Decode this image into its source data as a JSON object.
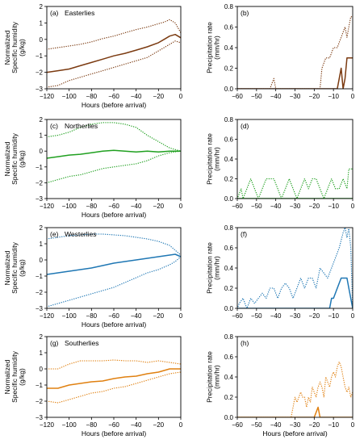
{
  "colors": {
    "easterlies": "#7b3a10",
    "northerlies": "#20a020",
    "westerlies": "#1f77b4",
    "southerlies": "#e08010",
    "axis": "#000000"
  },
  "chart_data": [
    {
      "id": "a",
      "type": "line",
      "panel_label": "(a)",
      "title": "Easterlies",
      "xlabel": "Hours (before arrival)",
      "ylabel": [
        "Normalized",
        "Specific humidity",
        "(g/kg)"
      ],
      "xlim": [
        -120,
        0
      ],
      "ylim": [
        -3,
        2
      ],
      "xticks": [
        -120,
        -100,
        -80,
        -60,
        -40,
        -20,
        0
      ],
      "xtick_labels": [
        "−120",
        "−100",
        "−80",
        "−60",
        "−40",
        "−20",
        "0"
      ],
      "yticks": [
        -3,
        -2,
        -1,
        0,
        1,
        2
      ],
      "ytick_labels": [
        "−3",
        "−2",
        "−1",
        "0",
        "1",
        "2"
      ],
      "color_key": "easterlies",
      "series": [
        {
          "style": "solid",
          "x": [
            -120,
            -110,
            -100,
            -90,
            -80,
            -70,
            -60,
            -50,
            -40,
            -30,
            -20,
            -15,
            -10,
            -5,
            0
          ],
          "y": [
            -2.0,
            -1.9,
            -1.8,
            -1.6,
            -1.4,
            -1.2,
            -1.0,
            -0.85,
            -0.65,
            -0.45,
            -0.2,
            0.0,
            0.2,
            0.3,
            0.1
          ]
        },
        {
          "style": "dotted",
          "x": [
            -120,
            -110,
            -100,
            -90,
            -80,
            -70,
            -60,
            -50,
            -40,
            -30,
            -20,
            -15,
            -10,
            -5,
            0
          ],
          "y": [
            -0.6,
            -0.5,
            -0.4,
            -0.3,
            -0.15,
            0.05,
            0.2,
            0.4,
            0.6,
            0.75,
            0.95,
            1.05,
            1.2,
            1.0,
            0.4
          ]
        },
        {
          "style": "dotted",
          "x": [
            -120,
            -110,
            -100,
            -90,
            -80,
            -70,
            -60,
            -50,
            -40,
            -30,
            -20,
            -15,
            -10,
            -5,
            0
          ],
          "y": [
            -2.9,
            -2.8,
            -2.5,
            -2.3,
            -2.1,
            -1.9,
            -1.7,
            -1.5,
            -1.3,
            -1.1,
            -0.7,
            -0.5,
            -0.3,
            -0.1,
            -0.2
          ]
        }
      ]
    },
    {
      "id": "b",
      "type": "line",
      "panel_label": "(b)",
      "title": "",
      "xlabel": "",
      "ylabel": [
        "Precipitation rate",
        "(mm/hr)"
      ],
      "xlim": [
        -60,
        0
      ],
      "ylim": [
        0,
        0.8
      ],
      "xticks": [
        -60,
        -50,
        -40,
        -30,
        -20,
        -10,
        0
      ],
      "xtick_labels": [
        "−60",
        "−50",
        "−40",
        "−30",
        "−20",
        "−10",
        "0"
      ],
      "yticks": [
        0,
        0.2,
        0.4,
        0.6,
        0.8
      ],
      "ytick_labels": [
        "0.0",
        "0.2",
        "0.4",
        "0.6",
        "0.8"
      ],
      "color_key": "easterlies",
      "series": [
        {
          "style": "solid",
          "x": [
            -60,
            -8,
            -7,
            -6,
            -5,
            -4,
            -3,
            -2,
            -1,
            0
          ],
          "y": [
            0,
            0,
            0.1,
            0.2,
            0,
            0.1,
            0.3,
            0.3,
            0.3,
            0.3
          ]
        },
        {
          "style": "dotted",
          "x": [
            -60,
            -43,
            -42,
            -41,
            -40,
            -17,
            -16,
            -14,
            -12,
            -10,
            -8,
            -6,
            -4,
            -3,
            -2,
            -1,
            0
          ],
          "y": [
            0,
            0,
            0.05,
            0.1,
            0,
            0,
            0.2,
            0.3,
            0.3,
            0.4,
            0.4,
            0.5,
            0.6,
            0.5,
            0.6,
            0.7,
            0.7
          ]
        }
      ]
    },
    {
      "id": "c",
      "type": "line",
      "panel_label": "(c)",
      "title": "Northerlies",
      "xlabel": "Hours (before arrival)",
      "ylabel": [
        "Normalized",
        "Specific humidity",
        "(g/kg)"
      ],
      "xlim": [
        -120,
        0
      ],
      "ylim": [
        -3,
        2
      ],
      "xticks": [
        -120,
        -100,
        -80,
        -60,
        -40,
        -20,
        0
      ],
      "xtick_labels": [
        "−120",
        "−100",
        "−80",
        "−60",
        "−40",
        "−20",
        "0"
      ],
      "yticks": [
        -3,
        -2,
        -1,
        0,
        1,
        2
      ],
      "ytick_labels": [
        "−3",
        "−2",
        "−1",
        "0",
        "1",
        "2"
      ],
      "color_key": "northerlies",
      "series": [
        {
          "style": "solid",
          "x": [
            -120,
            -110,
            -100,
            -90,
            -80,
            -70,
            -60,
            -50,
            -40,
            -30,
            -20,
            -10,
            0
          ],
          "y": [
            -0.45,
            -0.35,
            -0.25,
            -0.2,
            -0.1,
            0.0,
            0.05,
            0.0,
            -0.05,
            0.0,
            -0.05,
            0.0,
            0.0
          ]
        },
        {
          "style": "dotted",
          "x": [
            -120,
            -110,
            -100,
            -90,
            -80,
            -70,
            -60,
            -50,
            -40,
            -30,
            -20,
            -10,
            0
          ],
          "y": [
            0.9,
            1.0,
            1.2,
            1.5,
            1.7,
            1.8,
            1.8,
            1.7,
            1.5,
            1.0,
            0.6,
            0.2,
            0.0
          ]
        },
        {
          "style": "dotted",
          "x": [
            -120,
            -110,
            -100,
            -90,
            -80,
            -70,
            -60,
            -50,
            -40,
            -30,
            -20,
            -10,
            0
          ],
          "y": [
            -2.0,
            -1.8,
            -1.6,
            -1.5,
            -1.3,
            -1.1,
            -1.0,
            -0.9,
            -0.8,
            -0.6,
            -0.3,
            -0.1,
            0.0
          ]
        }
      ]
    },
    {
      "id": "d",
      "type": "line",
      "panel_label": "(d)",
      "title": "",
      "xlabel": "",
      "ylabel": [
        "Precipitation rate",
        "(mm/hr)"
      ],
      "xlim": [
        -60,
        0
      ],
      "ylim": [
        0,
        0.8
      ],
      "xticks": [
        -60,
        -50,
        -40,
        -30,
        -20,
        -10,
        0
      ],
      "xtick_labels": [
        "−60",
        "−50",
        "−40",
        "−30",
        "−20",
        "−10",
        "0"
      ],
      "yticks": [
        0,
        0.2,
        0.4,
        0.6,
        0.8
      ],
      "ytick_labels": [
        "0.0",
        "0.2",
        "0.4",
        "0.6",
        "0.8"
      ],
      "color_key": "northerlies",
      "series": [
        {
          "style": "solid",
          "x": [
            -60,
            0
          ],
          "y": [
            0,
            0
          ]
        },
        {
          "style": "dotted",
          "x": [
            -60,
            -58,
            -57,
            -55,
            -53,
            -51,
            -49,
            -47,
            -45,
            -43,
            -41,
            -39,
            -37,
            -35,
            -33,
            -31,
            -29,
            -27,
            -25,
            -23,
            -21,
            -19,
            -17,
            -15,
            -13,
            -11,
            -9,
            -7,
            -5,
            -3,
            -2,
            0
          ],
          "y": [
            0,
            0.1,
            0,
            0.1,
            0.2,
            0.1,
            0,
            0.1,
            0.2,
            0.2,
            0.2,
            0.1,
            0,
            0.1,
            0.2,
            0.1,
            0,
            0.1,
            0.2,
            0.1,
            0.2,
            0.2,
            0.1,
            0,
            0.1,
            0.2,
            0.1,
            0.1,
            0.2,
            0.1,
            0.3,
            0.3
          ]
        }
      ]
    },
    {
      "id": "e",
      "type": "line",
      "panel_label": "(e)",
      "title": "Westerlies",
      "xlabel": "Hours (before arrival)",
      "ylabel": [
        "Normalized",
        "Specific humidity",
        "(g/kg)"
      ],
      "xlim": [
        -120,
        0
      ],
      "ylim": [
        -3,
        2
      ],
      "xticks": [
        -120,
        -100,
        -80,
        -60,
        -40,
        -20,
        0
      ],
      "xtick_labels": [
        "−120",
        "−100",
        "−80",
        "−60",
        "−40",
        "−20",
        "0"
      ],
      "yticks": [
        -3,
        -2,
        -1,
        0,
        1,
        2
      ],
      "ytick_labels": [
        "−3",
        "−2",
        "−1",
        "0",
        "1",
        "2"
      ],
      "color_key": "westerlies",
      "series": [
        {
          "style": "solid",
          "x": [
            -120,
            -110,
            -100,
            -90,
            -80,
            -70,
            -60,
            -50,
            -40,
            -30,
            -20,
            -10,
            -5,
            0
          ],
          "y": [
            -0.9,
            -0.8,
            -0.7,
            -0.6,
            -0.5,
            -0.35,
            -0.2,
            -0.1,
            0.0,
            0.1,
            0.2,
            0.3,
            0.35,
            0.2
          ]
        },
        {
          "style": "dotted",
          "x": [
            -120,
            -110,
            -100,
            -90,
            -80,
            -70,
            -60,
            -50,
            -40,
            -30,
            -20,
            -10,
            -5,
            0
          ],
          "y": [
            1.3,
            1.4,
            1.5,
            1.55,
            1.6,
            1.6,
            1.55,
            1.5,
            1.4,
            1.3,
            1.15,
            0.9,
            0.6,
            0.3
          ]
        },
        {
          "style": "dotted",
          "x": [
            -120,
            -110,
            -100,
            -90,
            -80,
            -70,
            -60,
            -50,
            -40,
            -30,
            -20,
            -10,
            -5,
            0
          ],
          "y": [
            -2.9,
            -2.7,
            -2.5,
            -2.3,
            -2.1,
            -1.9,
            -1.7,
            -1.4,
            -1.1,
            -0.8,
            -0.6,
            -0.3,
            -0.1,
            0.2
          ]
        }
      ]
    },
    {
      "id": "f",
      "type": "line",
      "panel_label": "(f)",
      "title": "",
      "xlabel": "",
      "ylabel": [
        "Precipitation rate",
        "(mm/hr)"
      ],
      "xlim": [
        -60,
        0
      ],
      "ylim": [
        0,
        0.8
      ],
      "xticks": [
        -60,
        -50,
        -40,
        -30,
        -20,
        -10,
        0
      ],
      "xtick_labels": [
        "−60",
        "−50",
        "−40",
        "−30",
        "−20",
        "−10",
        "0"
      ],
      "yticks": [
        0,
        0.2,
        0.4,
        0.6,
        0.8
      ],
      "ytick_labels": [
        "0.0",
        "0.2",
        "0.4",
        "0.6",
        "0.8"
      ],
      "color_key": "westerlies",
      "series": [
        {
          "style": "solid",
          "x": [
            -60,
            -12,
            -11,
            -10,
            -8,
            -6,
            -4,
            -3,
            -2,
            -1,
            0
          ],
          "y": [
            0,
            0,
            0.1,
            0.1,
            0.2,
            0.3,
            0.3,
            0.3,
            0.2,
            0.1,
            0
          ]
        },
        {
          "style": "dotted",
          "x": [
            -60,
            -59,
            -57,
            -55,
            -53,
            -51,
            -49,
            -47,
            -45,
            -43,
            -41,
            -39,
            -37,
            -35,
            -33,
            -31,
            -29,
            -27,
            -25,
            -23,
            -21,
            -19,
            -17,
            -15,
            -13,
            -11,
            -9,
            -7,
            -5,
            -4,
            -3,
            -2,
            -1,
            0
          ],
          "y": [
            0,
            0.05,
            0.1,
            0,
            0.1,
            0.05,
            0.1,
            0.15,
            0.1,
            0.2,
            0.2,
            0.1,
            0.2,
            0.25,
            0.2,
            0.1,
            0.2,
            0.3,
            0.2,
            0.3,
            0.3,
            0.2,
            0.4,
            0.35,
            0.3,
            0.4,
            0.5,
            0.6,
            0.75,
            0.8,
            0.7,
            0.8,
            0.6,
            0
          ]
        }
      ]
    },
    {
      "id": "g",
      "type": "line",
      "panel_label": "(g)",
      "title": "Southerlies",
      "xlabel": "Hours (before arrival)",
      "ylabel": [
        "Normalized",
        "Specific humidity",
        "(g/kg)"
      ],
      "xlim": [
        -120,
        0
      ],
      "ylim": [
        -3,
        2
      ],
      "xticks": [
        -120,
        -100,
        -80,
        -60,
        -40,
        -20,
        0
      ],
      "xtick_labels": [
        "−120",
        "−100",
        "−80",
        "−60",
        "−40",
        "−20",
        "0"
      ],
      "yticks": [
        -3,
        -2,
        -1,
        0,
        1,
        2
      ],
      "ytick_labels": [
        "−3",
        "−2",
        "−1",
        "0",
        "1",
        "2"
      ],
      "color_key": "southerlies",
      "series": [
        {
          "style": "solid",
          "x": [
            -120,
            -110,
            -100,
            -90,
            -80,
            -70,
            -60,
            -50,
            -40,
            -30,
            -20,
            -10,
            0
          ],
          "y": [
            -1.2,
            -1.2,
            -1.0,
            -0.9,
            -0.8,
            -0.75,
            -0.6,
            -0.5,
            -0.45,
            -0.3,
            -0.2,
            0.0,
            0.0
          ]
        },
        {
          "style": "dotted",
          "x": [
            -120,
            -110,
            -100,
            -90,
            -80,
            -70,
            -60,
            -50,
            -40,
            -30,
            -20,
            -10,
            0
          ],
          "y": [
            0.0,
            0.0,
            0.3,
            0.5,
            0.5,
            0.5,
            0.55,
            0.5,
            0.5,
            0.4,
            0.5,
            0.4,
            0.3
          ]
        },
        {
          "style": "dotted",
          "x": [
            -120,
            -110,
            -100,
            -90,
            -80,
            -70,
            -60,
            -50,
            -40,
            -30,
            -20,
            -10,
            0
          ],
          "y": [
            -2.0,
            -2.1,
            -1.9,
            -1.7,
            -1.5,
            -1.4,
            -1.2,
            -1.1,
            -0.9,
            -0.7,
            -0.5,
            -0.3,
            -0.2
          ]
        }
      ]
    },
    {
      "id": "h",
      "type": "line",
      "panel_label": "(h)",
      "title": "",
      "xlabel": "Hours (before arrival)",
      "ylabel": [
        "Precipitation rate",
        "(mm/hr)"
      ],
      "xlim": [
        -60,
        0
      ],
      "ylim": [
        0,
        0.8
      ],
      "xticks": [
        -60,
        -50,
        -40,
        -30,
        -20,
        -10,
        0
      ],
      "xtick_labels": [
        "−60",
        "−50",
        "−40",
        "−30",
        "−20",
        "−10",
        "0"
      ],
      "yticks": [
        0,
        0.2,
        0.4,
        0.6,
        0.8
      ],
      "ytick_labels": [
        "0.0",
        "0.2",
        "0.4",
        "0.6",
        "0.8"
      ],
      "color_key": "southerlies",
      "series": [
        {
          "style": "solid",
          "x": [
            -60,
            -20,
            -19,
            -18,
            -17,
            0
          ],
          "y": [
            0,
            0,
            0.05,
            0.1,
            0,
            0
          ]
        },
        {
          "style": "dotted",
          "x": [
            -60,
            -32,
            -31,
            -30,
            -29,
            -28,
            -27,
            -26,
            -25,
            -24,
            -23,
            -22,
            -21,
            -20,
            -19,
            -18,
            -17,
            -16,
            -15,
            -14,
            -13,
            -12,
            -11,
            -10,
            -9,
            -8,
            -7,
            -6,
            -5,
            -4,
            -3,
            -2,
            -1,
            0
          ],
          "y": [
            0,
            0,
            0.1,
            0.2,
            0.15,
            0.2,
            0.25,
            0.2,
            0.2,
            0.1,
            0.2,
            0.15,
            0.3,
            0.25,
            0.2,
            0.3,
            0.35,
            0.3,
            0.2,
            0.4,
            0.35,
            0.3,
            0.4,
            0.45,
            0.4,
            0.5,
            0.55,
            0.5,
            0.4,
            0.3,
            0.25,
            0.3,
            0.2,
            0.25
          ]
        }
      ]
    }
  ]
}
